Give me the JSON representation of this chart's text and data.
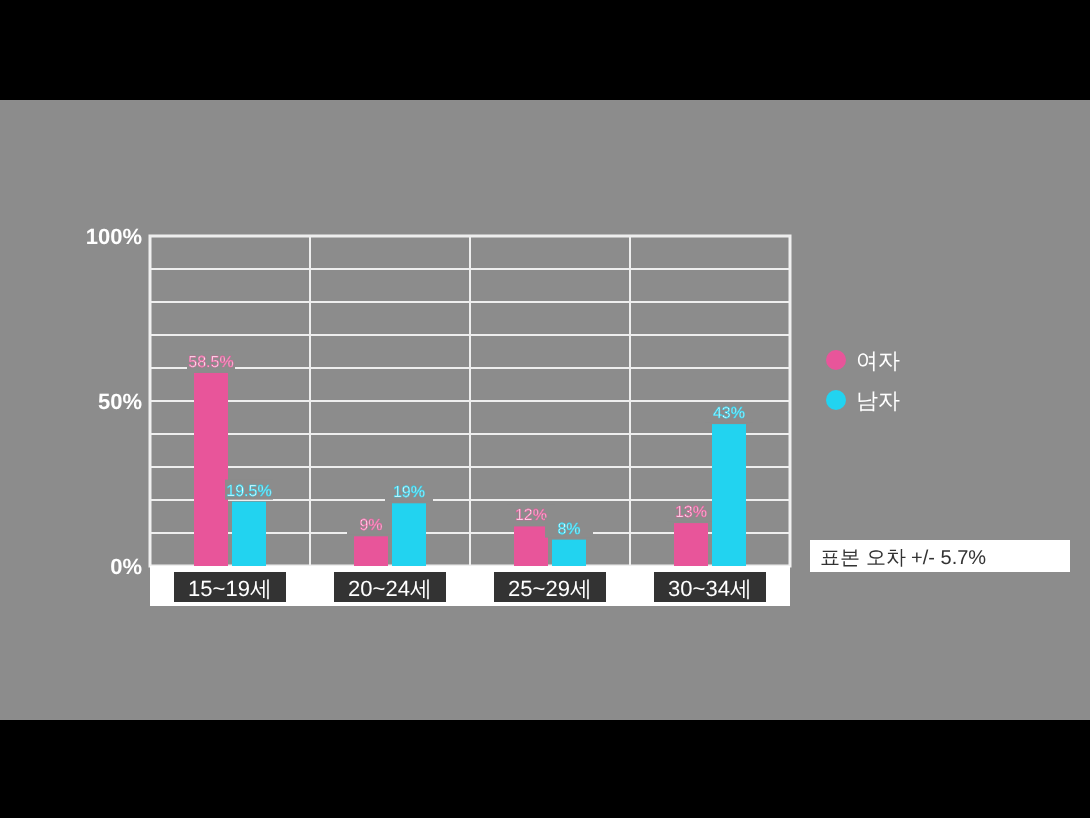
{
  "chart_data": {
    "type": "bar",
    "categories": [
      "15~19세",
      "20~24세",
      "25~29세",
      "30~34세"
    ],
    "series": [
      {
        "name": "여자",
        "color": "#e8559a",
        "values": [
          58.5,
          9,
          12,
          13
        ],
        "value_labels": [
          "58.5%",
          "9%",
          "12%",
          "13%"
        ]
      },
      {
        "name": "남자",
        "color": "#22d3f0",
        "values": [
          19.5,
          19,
          8,
          43
        ],
        "value_labels": [
          "19.5%",
          "19%",
          "8%",
          "43%"
        ]
      }
    ],
    "ylim": [
      0,
      100
    ],
    "yticks": [
      {
        "value": 0,
        "label": "0%"
      },
      {
        "value": 10,
        "label": null
      },
      {
        "value": 20,
        "label": null
      },
      {
        "value": 30,
        "label": null
      },
      {
        "value": 40,
        "label": null
      },
      {
        "value": 50,
        "label": "50%"
      },
      {
        "value": 60,
        "label": null
      },
      {
        "value": 70,
        "label": null
      },
      {
        "value": 80,
        "label": null
      },
      {
        "value": 90,
        "label": null
      },
      {
        "value": 100,
        "label": "100%"
      }
    ],
    "grid": true,
    "legend": "right",
    "annotations": [
      "표본 오차 +/- 5.7%"
    ]
  }
}
